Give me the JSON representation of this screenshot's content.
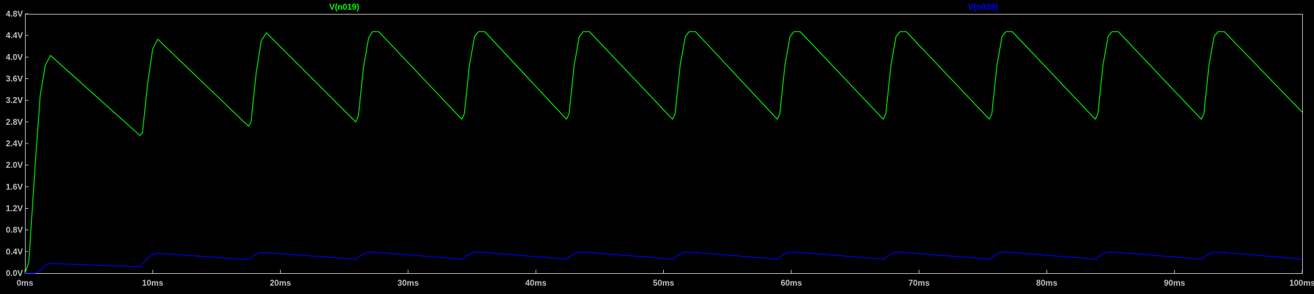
{
  "chart_data": {
    "type": "line",
    "xlabel": "",
    "ylabel": "",
    "xlim": [
      0,
      100
    ],
    "ylim": [
      0,
      4.8
    ],
    "grid": false,
    "legend": "top",
    "x_ticks": [
      0,
      10,
      20,
      30,
      40,
      50,
      60,
      70,
      80,
      90,
      100
    ],
    "x_tick_labels": [
      "0ms",
      "10ms",
      "20ms",
      "30ms",
      "40ms",
      "50ms",
      "60ms",
      "70ms",
      "80ms",
      "90ms",
      "100ms"
    ],
    "y_ticks": [
      0,
      0.4,
      0.8,
      1.2,
      1.6,
      2.0,
      2.4,
      2.8,
      3.2,
      3.6,
      4.0,
      4.4,
      4.8
    ],
    "y_tick_labels": [
      "0.0V",
      "0.4V",
      "0.8V",
      "1.2V",
      "1.6V",
      "2.0V",
      "2.4V",
      "2.8V",
      "3.2V",
      "3.6V",
      "4.0V",
      "4.4V",
      "4.8V"
    ],
    "series": [
      {
        "name": "V(n019)",
        "color": "#00ff00",
        "points": [
          [
            0,
            0
          ],
          [
            0.3,
            0.2
          ],
          [
            0.8,
            2.0
          ],
          [
            1.2,
            3.3
          ],
          [
            1.6,
            3.85
          ],
          [
            2.0,
            4.03
          ],
          [
            9.0,
            2.55
          ],
          [
            9.2,
            2.6
          ],
          [
            9.6,
            3.5
          ],
          [
            10.0,
            4.15
          ],
          [
            10.4,
            4.33
          ],
          [
            17.5,
            2.72
          ],
          [
            17.7,
            2.8
          ],
          [
            18.1,
            3.7
          ],
          [
            18.5,
            4.3
          ],
          [
            18.9,
            4.45
          ],
          [
            25.9,
            2.8
          ],
          [
            26.1,
            2.9
          ],
          [
            26.5,
            3.8
          ],
          [
            26.9,
            4.35
          ],
          [
            27.2,
            4.47
          ],
          [
            27.7,
            4.47
          ],
          [
            34.2,
            2.85
          ],
          [
            34.4,
            2.95
          ],
          [
            34.8,
            3.85
          ],
          [
            35.2,
            4.38
          ],
          [
            35.5,
            4.47
          ],
          [
            36.0,
            4.47
          ],
          [
            42.4,
            2.85
          ],
          [
            42.6,
            2.95
          ],
          [
            43.0,
            3.85
          ],
          [
            43.4,
            4.38
          ],
          [
            43.7,
            4.47
          ],
          [
            44.2,
            4.47
          ],
          [
            50.7,
            2.85
          ],
          [
            50.9,
            2.95
          ],
          [
            51.3,
            3.85
          ],
          [
            51.7,
            4.38
          ],
          [
            52.0,
            4.47
          ],
          [
            52.5,
            4.47
          ],
          [
            58.9,
            2.85
          ],
          [
            59.1,
            2.95
          ],
          [
            59.5,
            3.85
          ],
          [
            59.9,
            4.38
          ],
          [
            60.2,
            4.47
          ],
          [
            60.7,
            4.47
          ],
          [
            67.2,
            2.85
          ],
          [
            67.4,
            2.95
          ],
          [
            67.8,
            3.85
          ],
          [
            68.2,
            4.38
          ],
          [
            68.5,
            4.47
          ],
          [
            69.0,
            4.47
          ],
          [
            75.5,
            2.85
          ],
          [
            75.7,
            2.95
          ],
          [
            76.1,
            3.85
          ],
          [
            76.5,
            4.38
          ],
          [
            76.8,
            4.47
          ],
          [
            77.3,
            4.47
          ],
          [
            83.8,
            2.85
          ],
          [
            84.0,
            2.95
          ],
          [
            84.4,
            3.85
          ],
          [
            84.8,
            4.38
          ],
          [
            85.1,
            4.47
          ],
          [
            85.6,
            4.47
          ],
          [
            92.1,
            2.85
          ],
          [
            92.3,
            2.95
          ],
          [
            92.7,
            3.85
          ],
          [
            93.1,
            4.38
          ],
          [
            93.4,
            4.47
          ],
          [
            93.9,
            4.47
          ],
          [
            100,
            2.98
          ]
        ]
      },
      {
        "name": "V(n039)",
        "color": "#0000ff",
        "points": [
          [
            0,
            0
          ],
          [
            0.8,
            0
          ],
          [
            1.2,
            0.05
          ],
          [
            1.6,
            0.15
          ],
          [
            1.9,
            0.18
          ],
          [
            9.0,
            0.12
          ],
          [
            9.4,
            0.22
          ],
          [
            9.9,
            0.34
          ],
          [
            10.4,
            0.37
          ],
          [
            17.5,
            0.25
          ],
          [
            17.9,
            0.32
          ],
          [
            18.4,
            0.38
          ],
          [
            18.9,
            0.38
          ],
          [
            25.9,
            0.26
          ],
          [
            26.3,
            0.33
          ],
          [
            26.8,
            0.39
          ],
          [
            27.4,
            0.39
          ],
          [
            34.2,
            0.26
          ],
          [
            34.6,
            0.33
          ],
          [
            35.1,
            0.39
          ],
          [
            35.7,
            0.39
          ],
          [
            42.4,
            0.26
          ],
          [
            42.8,
            0.33
          ],
          [
            43.3,
            0.39
          ],
          [
            43.9,
            0.39
          ],
          [
            50.7,
            0.26
          ],
          [
            51.1,
            0.33
          ],
          [
            51.6,
            0.39
          ],
          [
            52.2,
            0.39
          ],
          [
            58.9,
            0.26
          ],
          [
            59.3,
            0.33
          ],
          [
            59.8,
            0.39
          ],
          [
            60.4,
            0.39
          ],
          [
            67.2,
            0.26
          ],
          [
            67.6,
            0.33
          ],
          [
            68.1,
            0.39
          ],
          [
            68.7,
            0.39
          ],
          [
            75.5,
            0.26
          ],
          [
            75.9,
            0.33
          ],
          [
            76.4,
            0.39
          ],
          [
            77.0,
            0.39
          ],
          [
            83.8,
            0.26
          ],
          [
            84.2,
            0.33
          ],
          [
            84.7,
            0.39
          ],
          [
            85.3,
            0.39
          ],
          [
            92.1,
            0.26
          ],
          [
            92.5,
            0.33
          ],
          [
            93.0,
            0.39
          ],
          [
            93.6,
            0.39
          ],
          [
            100,
            0.26
          ]
        ]
      }
    ]
  }
}
